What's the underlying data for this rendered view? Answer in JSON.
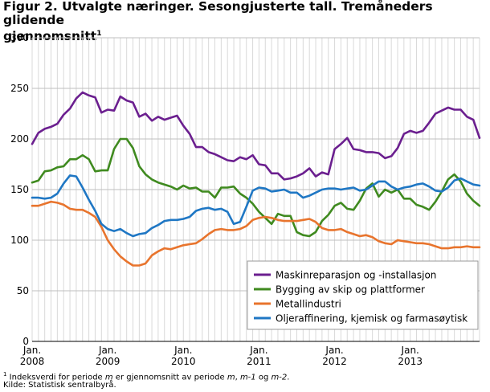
{
  "header": {
    "title_line1": "Figur 2. Utvalgte næringer. Sesongjusterte tall. Tremåneders glidende",
    "title_line2": "gjennomsnitt",
    "title_sup": "1"
  },
  "footnotes": {
    "note_sup": "1",
    "note_parts": [
      "Indeksverdi for periode ",
      "m",
      " er gjennomsnitt av periode ",
      "m",
      ", ",
      "m-1",
      " og ",
      "m-2",
      "."
    ],
    "source": "Kilde: Statistisk sentralbyrå."
  },
  "chart_data": {
    "type": "line",
    "title": "Figur 2. Utvalgte næringer. Sesongjusterte tall. Tremåneders glidende gjennomsnitt",
    "xlabel": "",
    "ylabel": "",
    "ylim": [
      0,
      300
    ],
    "yticks": [
      0,
      50,
      100,
      150,
      200,
      250,
      300
    ],
    "grid": true,
    "legend_position": "bottom-right",
    "x_start": "2008-01",
    "x_tick_labels": [
      {
        "month": "Jan.",
        "year": "2008",
        "index": 0
      },
      {
        "month": "Jan.",
        "year": "2009",
        "index": 12
      },
      {
        "month": "Jan.",
        "year": "2010",
        "index": 24
      },
      {
        "month": "Jan.",
        "year": "2011",
        "index": 36
      },
      {
        "month": "Jan.",
        "year": "2012",
        "index": 48
      },
      {
        "month": "Jan.",
        "year": "2013",
        "index": 60
      }
    ],
    "series": [
      {
        "name": "Maskinreparasjon og -installasjon",
        "color": "#6b1f8f",
        "values": [
          195,
          206,
          210,
          212,
          215,
          224,
          230,
          240,
          246,
          243,
          241,
          226,
          229,
          228,
          242,
          238,
          236,
          222,
          225,
          218,
          222,
          219,
          221,
          223,
          213,
          205,
          192,
          192,
          187,
          185,
          182,
          179,
          178,
          182,
          180,
          184,
          175,
          174,
          166,
          166,
          160,
          161,
          163,
          166,
          171,
          163,
          167,
          165,
          190,
          195,
          201,
          190,
          189,
          187,
          187,
          186,
          181,
          183,
          191,
          205,
          208,
          206,
          208,
          216,
          225,
          228,
          231,
          229,
          229,
          222,
          219,
          201
        ]
      },
      {
        "name": "Bygging av skip og plattformer",
        "color": "#3f8a1f",
        "values": [
          157,
          159,
          168,
          169,
          172,
          173,
          180,
          180,
          184,
          180,
          168,
          169,
          169,
          190,
          200,
          200,
          191,
          173,
          165,
          160,
          157,
          155,
          153,
          150,
          154,
          151,
          152,
          148,
          148,
          142,
          152,
          152,
          153,
          146,
          142,
          136,
          128,
          122,
          116,
          126,
          124,
          124,
          108,
          105,
          104,
          108,
          119,
          125,
          134,
          137,
          131,
          130,
          139,
          151,
          156,
          143,
          150,
          147,
          150,
          141,
          141,
          135,
          133,
          130,
          138,
          148,
          160,
          165,
          158,
          146,
          139,
          134
        ]
      },
      {
        "name": "Metallindustri",
        "color": "#e8742d",
        "values": [
          134,
          134,
          136,
          138,
          137,
          135,
          131,
          130,
          130,
          127,
          123,
          113,
          100,
          91,
          84,
          79,
          75,
          75,
          77,
          85,
          89,
          92,
          91,
          93,
          95,
          96,
          97,
          101,
          106,
          110,
          111,
          110,
          110,
          111,
          114,
          120,
          122,
          123,
          122,
          120,
          119,
          119,
          119,
          120,
          121,
          118,
          112,
          110,
          110,
          111,
          108,
          106,
          104,
          105,
          103,
          99,
          97,
          96,
          100,
          99,
          98,
          97,
          97,
          96,
          94,
          92,
          92,
          93,
          93,
          94,
          93,
          93
        ]
      },
      {
        "name": "Oljeraffinering, kjemisk og farmasøytisk",
        "color": "#1f77c4",
        "values": [
          142,
          142,
          141,
          142,
          146,
          156,
          164,
          163,
          152,
          140,
          129,
          116,
          111,
          109,
          111,
          107,
          104,
          106,
          107,
          112,
          115,
          119,
          120,
          120,
          121,
          123,
          129,
          131,
          132,
          130,
          131,
          128,
          116,
          118,
          133,
          149,
          152,
          151,
          148,
          149,
          150,
          147,
          147,
          142,
          144,
          147,
          150,
          151,
          151,
          150,
          151,
          152,
          149,
          150,
          154,
          158,
          158,
          153,
          150,
          152,
          153,
          155,
          156,
          153,
          149,
          148,
          152,
          159,
          161,
          158,
          155,
          154
        ]
      }
    ]
  }
}
